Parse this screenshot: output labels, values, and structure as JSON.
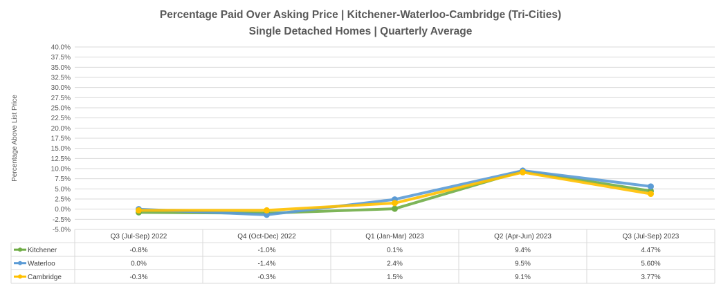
{
  "chart_data": {
    "type": "line",
    "title": "Percentage Paid Over Asking Price | Kitchener-Waterloo-Cambridge (Tri-Cities)",
    "subtitle": "Single Detached Homes | Quarterly Average",
    "ylabel": "Percentage Above List Price",
    "xlabel": "",
    "ylim": [
      -5,
      40
    ],
    "y_ticks": [
      "40.0%",
      "37.5%",
      "35.0%",
      "32.5%",
      "30.0%",
      "27.5%",
      "25.0%",
      "22.5%",
      "20.0%",
      "17.5%",
      "15.0%",
      "12.5%",
      "10.0%",
      "7.5%",
      "5.0%",
      "2.5%",
      "0.0%",
      "-2.5%",
      "-5.0%"
    ],
    "grid": true,
    "legend": "data-table",
    "categories": [
      "Q3 (Jul-Sep) 2022",
      "Q4 (Oct-Dec) 2022",
      "Q1 (Jan-Mar) 2023",
      "Q2 (Apr-Jun) 2023",
      "Q3 (Jul-Sep) 2023"
    ],
    "series": [
      {
        "name": "Kitchener",
        "color": "#70AD47",
        "values": [
          -0.8,
          -1.0,
          0.1,
          9.4,
          4.47
        ],
        "labels": [
          "-0.8%",
          "-1.0%",
          "0.1%",
          "9.4%",
          "4.47%"
        ]
      },
      {
        "name": "Waterloo",
        "color": "#5B9BD5",
        "values": [
          0.0,
          -1.4,
          2.4,
          9.5,
          5.6
        ],
        "labels": [
          "0.0%",
          "-1.4%",
          "2.4%",
          "9.5%",
          "5.60%"
        ]
      },
      {
        "name": "Cambridge",
        "color": "#FFC000",
        "values": [
          -0.3,
          -0.3,
          1.5,
          9.1,
          3.77
        ],
        "labels": [
          "-0.3%",
          "-0.3%",
          "1.5%",
          "9.1%",
          "3.77%"
        ]
      }
    ]
  }
}
